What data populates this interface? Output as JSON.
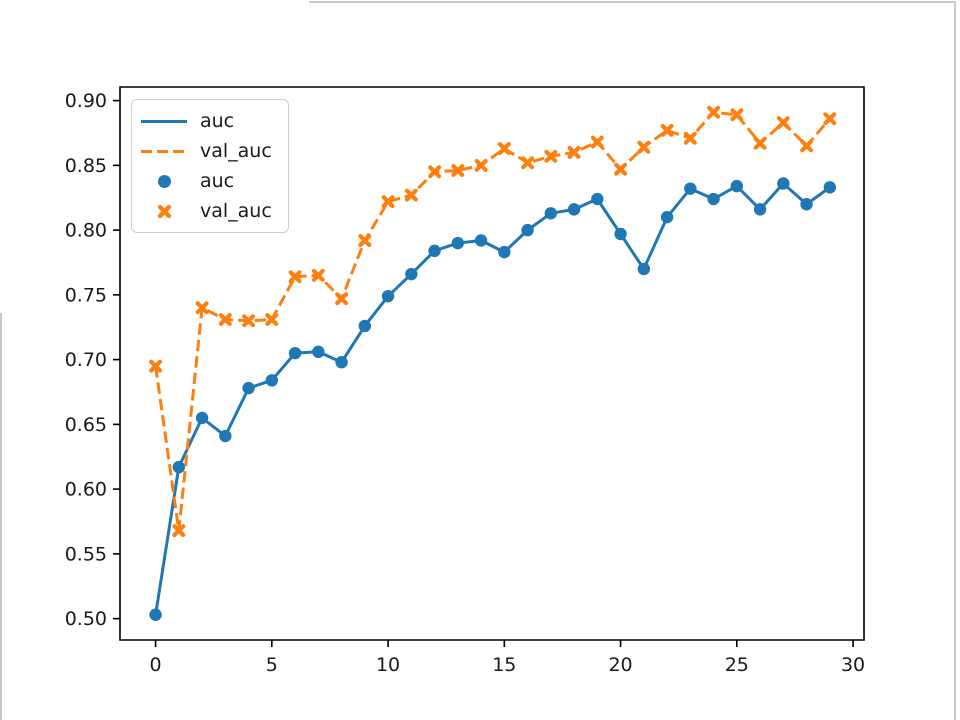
{
  "figure": {
    "background_color": "#ffffff",
    "artifact_line_color": "#c8c8c8"
  },
  "legend": {
    "position": "upper left",
    "items": [
      {
        "label": "auc",
        "color": "#1f77b4",
        "sample": "solid-line"
      },
      {
        "label": "val_auc",
        "color": "#ff7f0e",
        "sample": "dashed-line"
      },
      {
        "label": "auc",
        "color": "#1f77b4",
        "sample": "circle-marker"
      },
      {
        "label": "val_auc",
        "color": "#ff7f0e",
        "sample": "x-marker"
      }
    ]
  },
  "chart_data": {
    "type": "line",
    "title": "",
    "xlabel": "",
    "ylabel": "",
    "grid": false,
    "legend_position": "upper left",
    "xlim": [
      -1.53,
      30.47
    ],
    "ylim": [
      0.4835,
      0.9105
    ],
    "xtick_values": [
      0,
      5,
      10,
      15,
      20,
      25,
      30
    ],
    "xtick_labels": [
      "0",
      "5",
      "10",
      "15",
      "20",
      "25",
      "30"
    ],
    "ytick_values": [
      0.5,
      0.55,
      0.6,
      0.65,
      0.7,
      0.75,
      0.8,
      0.85,
      0.9
    ],
    "ytick_labels": [
      "0.50",
      "0.55",
      "0.60",
      "0.65",
      "0.70",
      "0.75",
      "0.80",
      "0.85",
      "0.90"
    ],
    "x": [
      0,
      1,
      2,
      3,
      4,
      5,
      6,
      7,
      8,
      9,
      10,
      11,
      12,
      13,
      14,
      15,
      16,
      17,
      18,
      19,
      20,
      21,
      22,
      23,
      24,
      25,
      26,
      27,
      28,
      29
    ],
    "series": [
      {
        "name": "auc",
        "color": "#1f77b4",
        "line_style": "solid",
        "marker": "circle",
        "values": [
          0.503,
          0.617,
          0.655,
          0.641,
          0.678,
          0.684,
          0.705,
          0.706,
          0.698,
          0.726,
          0.749,
          0.766,
          0.784,
          0.79,
          0.792,
          0.783,
          0.8,
          0.813,
          0.816,
          0.824,
          0.797,
          0.77,
          0.81,
          0.832,
          0.824,
          0.834,
          0.816,
          0.836,
          0.82,
          0.833
        ]
      },
      {
        "name": "val_auc",
        "color": "#ff7f0e",
        "line_style": "dashed",
        "marker": "X",
        "values": [
          0.695,
          0.568,
          0.74,
          0.731,
          0.73,
          0.731,
          0.764,
          0.765,
          0.747,
          0.792,
          0.822,
          0.827,
          0.845,
          0.846,
          0.85,
          0.863,
          0.852,
          0.857,
          0.86,
          0.868,
          0.847,
          0.864,
          0.877,
          0.871,
          0.891,
          0.889,
          0.867,
          0.883,
          0.865,
          0.886
        ]
      }
    ],
    "axis_color": "#000000",
    "tick_label_color": "#1a1a1a"
  }
}
